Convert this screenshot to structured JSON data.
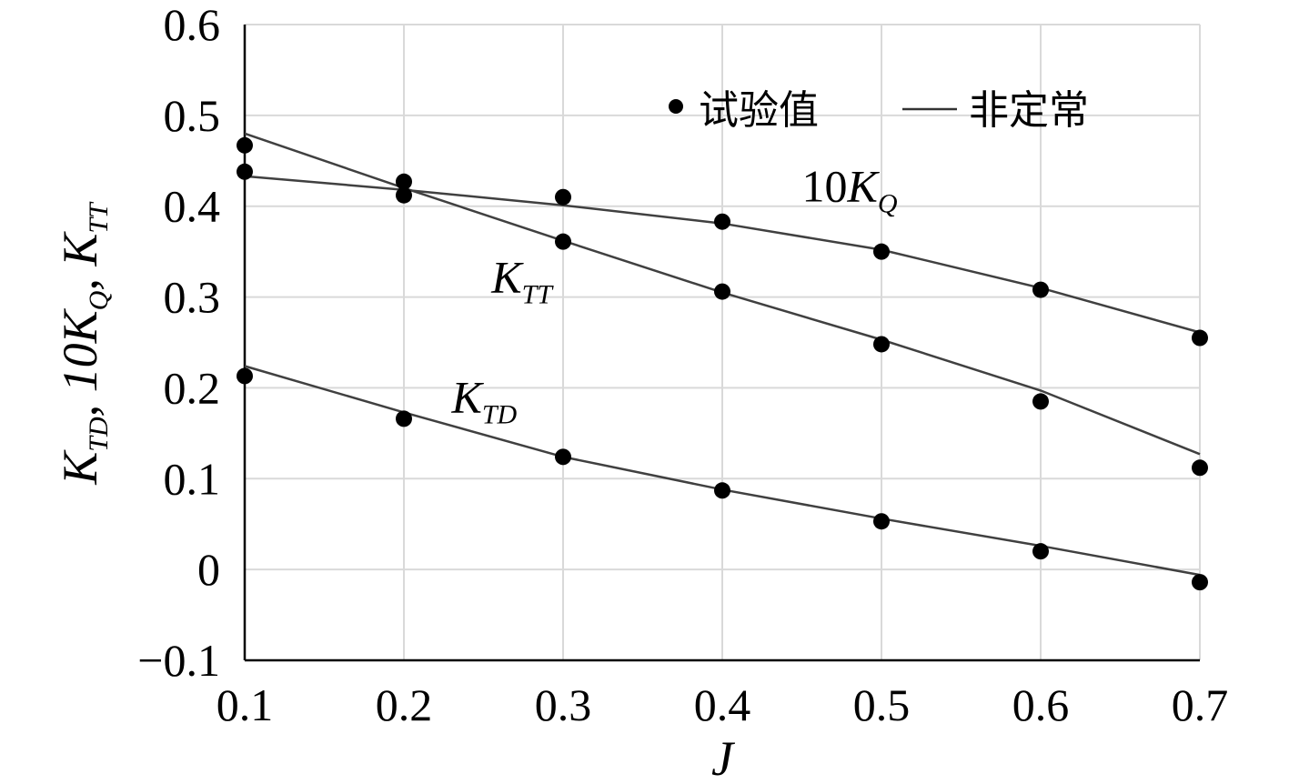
{
  "chart_data": {
    "type": "scatter",
    "xlabel": "J",
    "ylabel": {
      "parts": [
        {
          "t": "K",
          "s": "TD"
        },
        {
          "t": ", 10K",
          "s": "Q"
        },
        {
          "t": ", K",
          "s": "TT"
        }
      ]
    },
    "xlim": [
      0.1,
      0.7
    ],
    "ylim": [
      -0.1,
      0.6
    ],
    "x_ticks": [
      "0.1",
      "0.2",
      "0.3",
      "0.4",
      "0.5",
      "0.6",
      "0.7"
    ],
    "y_ticks": [
      "0.6",
      "0.5",
      "0.4",
      "0.3",
      "0.2",
      "0.1",
      "0",
      "−0.1"
    ],
    "x_tick_values": [
      0.1,
      0.2,
      0.3,
      0.4,
      0.5,
      0.6,
      0.7
    ],
    "y_tick_values": [
      0.6,
      0.5,
      0.4,
      0.3,
      0.2,
      0.1,
      0,
      -0.1
    ],
    "grid": true,
    "legend": {
      "placement": "top-right",
      "entries": [
        {
          "symbol": "dot",
          "label": "试验值"
        },
        {
          "symbol": "line",
          "label": "非定常"
        }
      ]
    },
    "series": [
      {
        "key": "10KQ",
        "label_main": "10K",
        "label_sub": "Q",
        "label_at": [
          0.45,
          0.405
        ],
        "points": {
          "x": [
            0.1,
            0.2,
            0.3,
            0.4,
            0.5,
            0.6,
            0.7
          ],
          "y": [
            0.438,
            0.427,
            0.41,
            0.383,
            0.35,
            0.308,
            0.255
          ]
        },
        "curve": {
          "x": [
            0.1,
            0.2,
            0.3,
            0.4,
            0.5,
            0.6,
            0.7
          ],
          "y": [
            0.433,
            0.418,
            0.401,
            0.381,
            0.352,
            0.31,
            0.261
          ]
        }
      },
      {
        "key": "KTT",
        "label_main": "K",
        "label_sub": "TT",
        "label_at": [
          0.255,
          0.305
        ],
        "points": {
          "x": [
            0.1,
            0.2,
            0.3,
            0.4,
            0.5,
            0.6,
            0.7
          ],
          "y": [
            0.467,
            0.412,
            0.361,
            0.306,
            0.248,
            0.185,
            0.112
          ]
        },
        "curve": {
          "x": [
            0.1,
            0.2,
            0.3,
            0.4,
            0.5,
            0.6,
            0.7
          ],
          "y": [
            0.48,
            0.42,
            0.362,
            0.305,
            0.253,
            0.197,
            0.127
          ]
        }
      },
      {
        "key": "KTD",
        "label_main": "K",
        "label_sub": "TD",
        "label_at": [
          0.23,
          0.173
        ],
        "points": {
          "x": [
            0.1,
            0.2,
            0.3,
            0.4,
            0.5,
            0.6,
            0.7
          ],
          "y": [
            0.213,
            0.166,
            0.124,
            0.087,
            0.053,
            0.02,
            -0.014
          ]
        },
        "curve": {
          "x": [
            0.1,
            0.2,
            0.3,
            0.4,
            0.5,
            0.6,
            0.7
          ],
          "y": [
            0.224,
            0.173,
            0.124,
            0.088,
            0.056,
            0.026,
            -0.006
          ]
        }
      }
    ]
  }
}
